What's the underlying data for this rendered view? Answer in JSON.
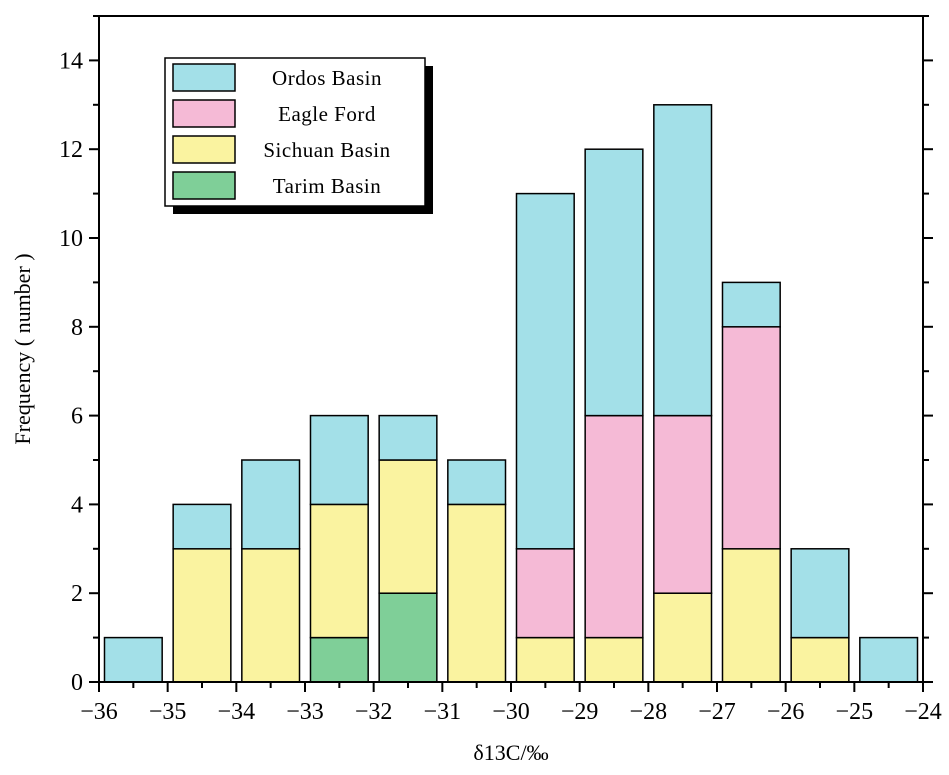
{
  "chart_data": {
    "type": "bar",
    "stacked": true,
    "xlabel": "δ13C/‰",
    "ylabel": "Frequency ( number )",
    "xlim": [
      -36,
      -24
    ],
    "ylim": [
      0,
      15
    ],
    "x_ticks": [
      -36,
      -35,
      -34,
      -33,
      -32,
      -31,
      -30,
      -29,
      -28,
      -27,
      -26,
      -25,
      -24
    ],
    "x_tick_labels": [
      "−36",
      "−35",
      "−34",
      "−33",
      "−32",
      "−31",
      "−30",
      "−29",
      "−28",
      "−27",
      "−26",
      "−25",
      "−24"
    ],
    "y_ticks": [
      0,
      2,
      4,
      6,
      8,
      10,
      12,
      14
    ],
    "y_tick_labels": [
      "0",
      "2",
      "4",
      "6",
      "8",
      "10",
      "12",
      "14"
    ],
    "bin_centers": [
      -35.5,
      -34.5,
      -33.5,
      -32.5,
      -31.5,
      -30.5,
      -29.5,
      -28.5,
      -27.5,
      -26.5,
      -25.5,
      -24.5
    ],
    "series": [
      {
        "name": "Tarim Basin",
        "color": "#7fcf98",
        "values": [
          0,
          0,
          0,
          1,
          2,
          0,
          0,
          0,
          0,
          0,
          0,
          0
        ]
      },
      {
        "name": "Sichuan Basin",
        "color": "#faf3a0",
        "values": [
          0,
          3,
          3,
          3,
          3,
          4,
          1,
          1,
          2,
          3,
          1,
          0
        ]
      },
      {
        "name": "Eagle  Ford",
        "color": "#f5bad6",
        "values": [
          0,
          0,
          0,
          0,
          0,
          0,
          2,
          5,
          4,
          5,
          0,
          0
        ]
      },
      {
        "name": "Ordos Basin",
        "color": "#a3e0e8",
        "values": [
          1,
          1,
          2,
          2,
          1,
          1,
          8,
          6,
          7,
          1,
          2,
          1
        ]
      }
    ],
    "legend": {
      "placement": "top-left",
      "entries": [
        "Ordos Basin",
        "Eagle  Ford",
        "Sichuan Basin",
        "Tarim Basin"
      ]
    },
    "grid": false
  }
}
